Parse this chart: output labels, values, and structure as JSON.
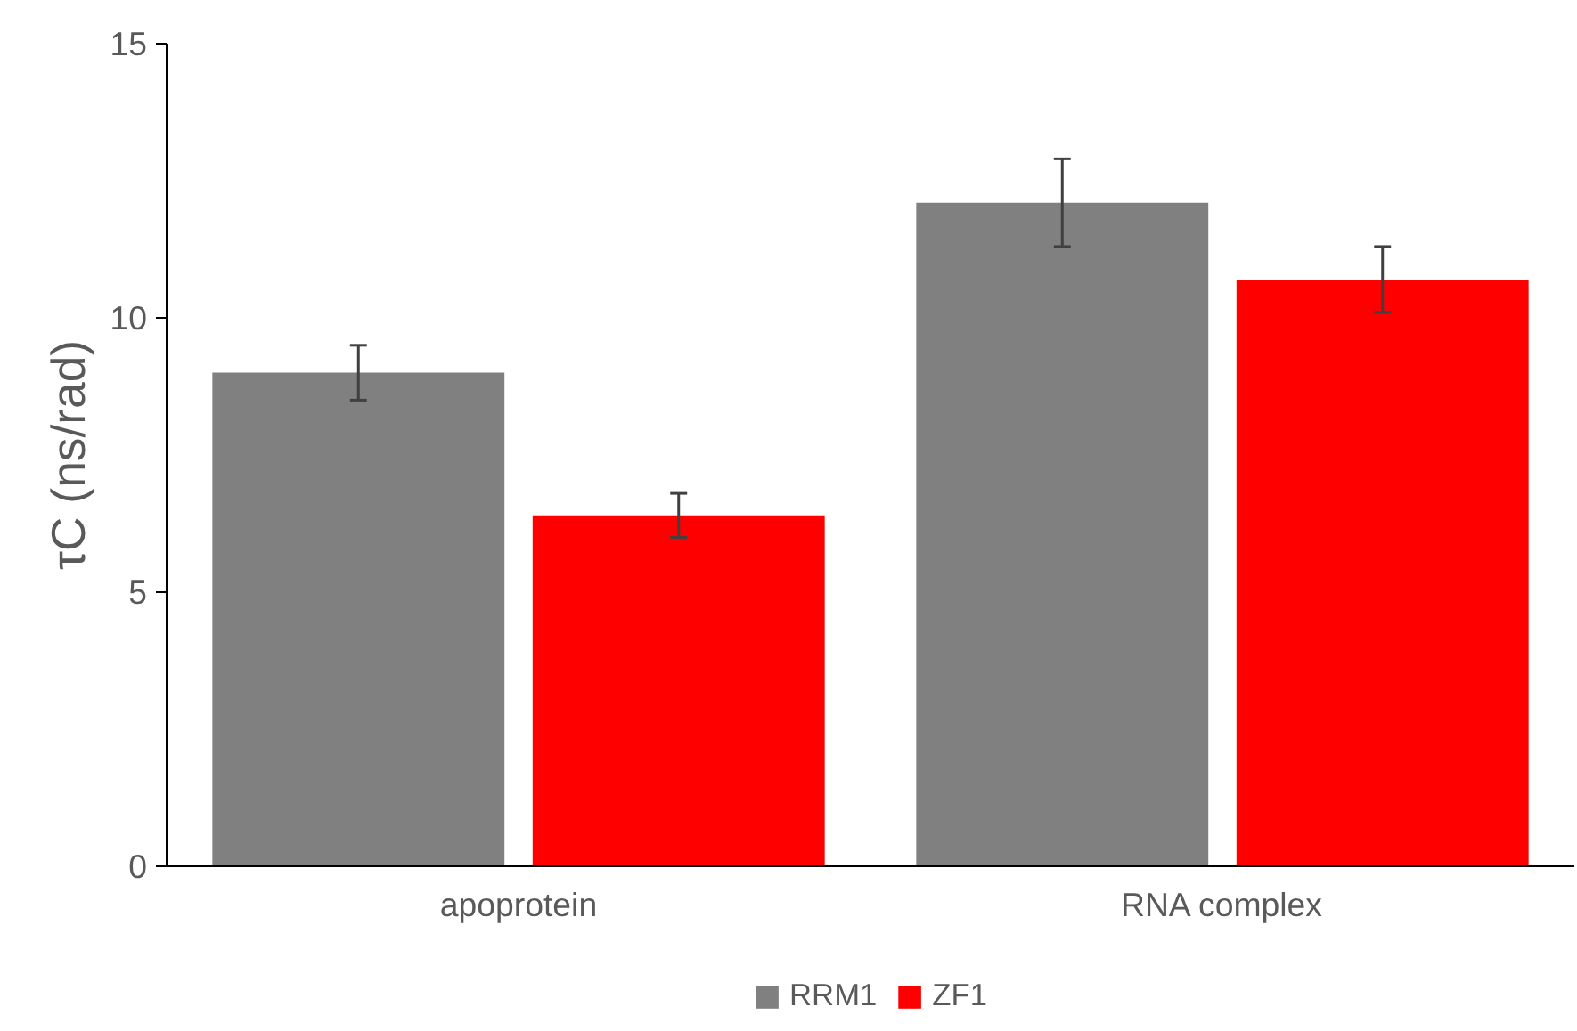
{
  "chart_data": {
    "type": "bar",
    "ylabel": "τC (ns/rad)",
    "categories": [
      "apoprotein",
      "RNA complex"
    ],
    "series": [
      {
        "name": "RRM1",
        "color": "#808080",
        "values": [
          9.0,
          12.1
        ],
        "errors": [
          0.5,
          0.8
        ]
      },
      {
        "name": "ZF1",
        "color": "#ff0000",
        "values": [
          6.4,
          10.7
        ],
        "errors": [
          0.4,
          0.6
        ]
      }
    ],
    "ylim": [
      0,
      15
    ],
    "yticks": [
      0,
      5,
      10,
      15
    ],
    "grid": false,
    "legend": "bottom"
  }
}
